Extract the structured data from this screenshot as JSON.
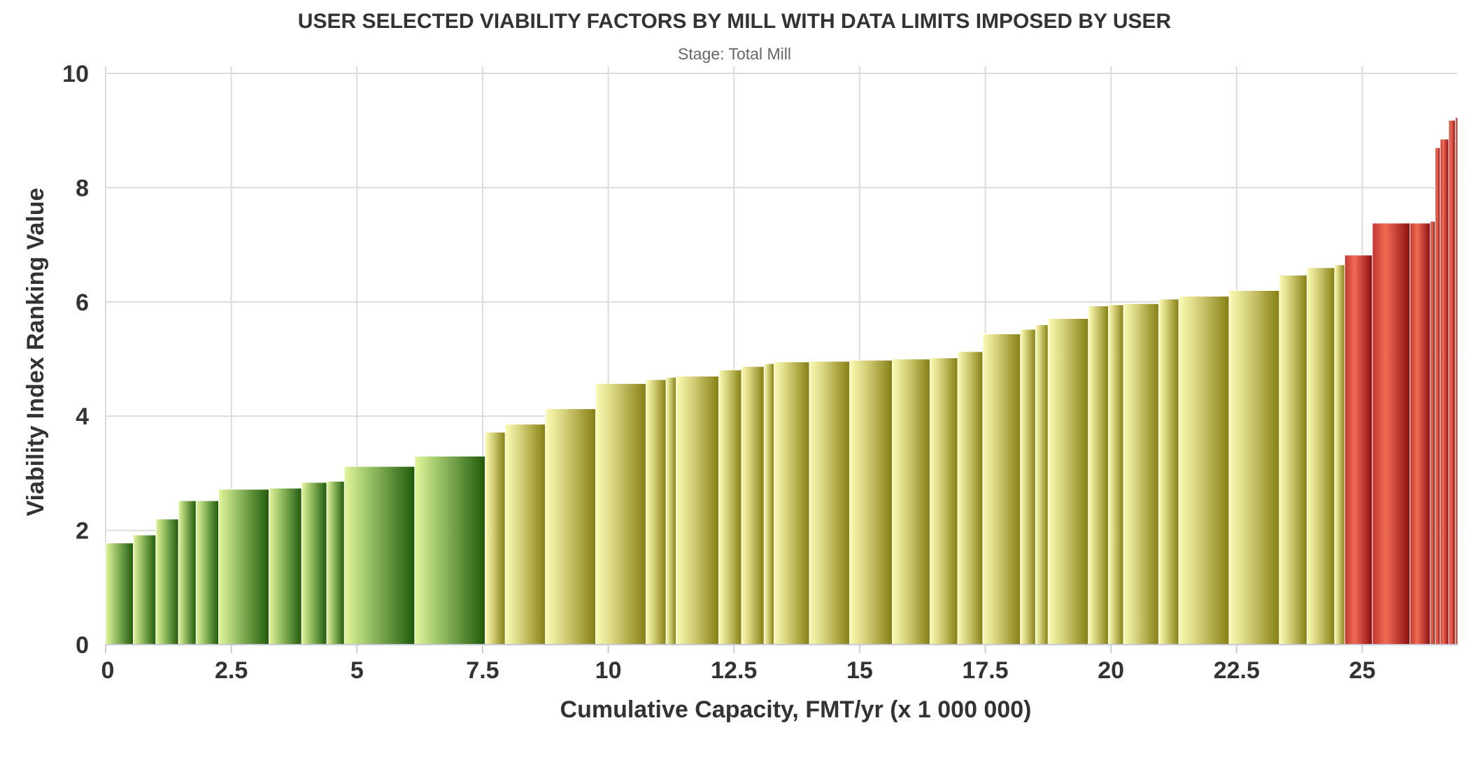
{
  "chart_data": {
    "type": "bar",
    "title": "USER SELECTED VIABILITY FACTORS BY MILL WITH DATA LIMITS IMPOSED BY USER",
    "subtitle": "Stage: Total Mill",
    "xlabel": "Cumulative Capacity, FMT/yr (x 1 000 000)",
    "ylabel": "Viability Index Ranking Value",
    "xlim": [
      0,
      26.9
    ],
    "ylim": [
      0,
      10
    ],
    "x_ticks": [
      "0",
      "2.5",
      "5",
      "7.5",
      "10",
      "12.5",
      "15",
      "17.5",
      "20",
      "22.5",
      "25"
    ],
    "x_tick_values": [
      0,
      2.5,
      5,
      7.5,
      10,
      12.5,
      15,
      17.5,
      20,
      22.5,
      25
    ],
    "y_ticks": [
      "0",
      "2",
      "4",
      "6",
      "8",
      "10"
    ],
    "y_tick_values": [
      0,
      2,
      4,
      6,
      8,
      10
    ],
    "grid": true,
    "legend": "none",
    "bar_style": "variable-width bars, each spanning a mill's capacity along the cumulative x axis",
    "colors": {
      "green": "#2e6b14",
      "olive": "#8f8a18",
      "red": "#c0392b"
    },
    "bars": [
      {
        "x0": 0.0,
        "x1": 0.55,
        "value": 1.78,
        "group": "green"
      },
      {
        "x0": 0.55,
        "x1": 1.0,
        "value": 1.92,
        "group": "green"
      },
      {
        "x0": 1.0,
        "x1": 1.45,
        "value": 2.2,
        "group": "green"
      },
      {
        "x0": 1.45,
        "x1": 1.8,
        "value": 2.52,
        "group": "green"
      },
      {
        "x0": 1.8,
        "x1": 2.25,
        "value": 2.52,
        "group": "green"
      },
      {
        "x0": 2.25,
        "x1": 3.25,
        "value": 2.72,
        "group": "green"
      },
      {
        "x0": 3.25,
        "x1": 3.9,
        "value": 2.74,
        "group": "green"
      },
      {
        "x0": 3.9,
        "x1": 4.4,
        "value": 2.84,
        "group": "green"
      },
      {
        "x0": 4.4,
        "x1": 4.75,
        "value": 2.86,
        "group": "green"
      },
      {
        "x0": 4.75,
        "x1": 6.15,
        "value": 3.12,
        "group": "green"
      },
      {
        "x0": 6.15,
        "x1": 7.55,
        "value": 3.3,
        "group": "green"
      },
      {
        "x0": 7.55,
        "x1": 7.95,
        "value": 3.72,
        "group": "olive"
      },
      {
        "x0": 7.95,
        "x1": 8.75,
        "value": 3.86,
        "group": "olive"
      },
      {
        "x0": 8.75,
        "x1": 9.75,
        "value": 4.13,
        "group": "olive"
      },
      {
        "x0": 9.75,
        "x1": 10.75,
        "value": 4.57,
        "group": "olive"
      },
      {
        "x0": 10.75,
        "x1": 11.15,
        "value": 4.64,
        "group": "olive"
      },
      {
        "x0": 11.15,
        "x1": 11.35,
        "value": 4.68,
        "group": "olive"
      },
      {
        "x0": 11.35,
        "x1": 12.2,
        "value": 4.7,
        "group": "olive"
      },
      {
        "x0": 12.2,
        "x1": 12.65,
        "value": 4.81,
        "group": "olive"
      },
      {
        "x0": 12.65,
        "x1": 13.1,
        "value": 4.87,
        "group": "olive"
      },
      {
        "x0": 13.1,
        "x1": 13.3,
        "value": 4.92,
        "group": "olive"
      },
      {
        "x0": 13.3,
        "x1": 14.0,
        "value": 4.95,
        "group": "olive"
      },
      {
        "x0": 14.0,
        "x1": 14.8,
        "value": 4.96,
        "group": "olive"
      },
      {
        "x0": 14.8,
        "x1": 15.65,
        "value": 4.98,
        "group": "olive"
      },
      {
        "x0": 15.65,
        "x1": 16.4,
        "value": 5.0,
        "group": "olive"
      },
      {
        "x0": 16.4,
        "x1": 16.95,
        "value": 5.02,
        "group": "olive"
      },
      {
        "x0": 16.95,
        "x1": 17.45,
        "value": 5.13,
        "group": "olive"
      },
      {
        "x0": 17.45,
        "x1": 18.2,
        "value": 5.44,
        "group": "olive"
      },
      {
        "x0": 18.2,
        "x1": 18.5,
        "value": 5.52,
        "group": "olive"
      },
      {
        "x0": 18.5,
        "x1": 18.75,
        "value": 5.6,
        "group": "olive"
      },
      {
        "x0": 18.75,
        "x1": 19.55,
        "value": 5.71,
        "group": "olive"
      },
      {
        "x0": 19.55,
        "x1": 19.95,
        "value": 5.93,
        "group": "olive"
      },
      {
        "x0": 19.95,
        "x1": 20.25,
        "value": 5.95,
        "group": "olive"
      },
      {
        "x0": 20.25,
        "x1": 20.95,
        "value": 5.97,
        "group": "olive"
      },
      {
        "x0": 20.95,
        "x1": 21.35,
        "value": 6.05,
        "group": "olive"
      },
      {
        "x0": 21.35,
        "x1": 22.35,
        "value": 6.1,
        "group": "olive"
      },
      {
        "x0": 22.35,
        "x1": 23.35,
        "value": 6.2,
        "group": "olive"
      },
      {
        "x0": 23.35,
        "x1": 23.9,
        "value": 6.47,
        "group": "olive"
      },
      {
        "x0": 23.9,
        "x1": 24.45,
        "value": 6.6,
        "group": "olive"
      },
      {
        "x0": 24.45,
        "x1": 24.65,
        "value": 6.65,
        "group": "olive"
      },
      {
        "x0": 24.65,
        "x1": 25.2,
        "value": 6.82,
        "group": "red"
      },
      {
        "x0": 25.2,
        "x1": 25.95,
        "value": 7.38,
        "group": "red"
      },
      {
        "x0": 25.95,
        "x1": 26.35,
        "value": 7.38,
        "group": "red"
      },
      {
        "x0": 26.35,
        "x1": 26.45,
        "value": 7.41,
        "group": "red"
      },
      {
        "x0": 26.45,
        "x1": 26.55,
        "value": 8.7,
        "group": "red"
      },
      {
        "x0": 26.55,
        "x1": 26.72,
        "value": 8.85,
        "group": "red"
      },
      {
        "x0": 26.72,
        "x1": 26.85,
        "value": 9.18,
        "group": "red"
      },
      {
        "x0": 26.85,
        "x1": 26.9,
        "value": 9.23,
        "group": "red"
      }
    ]
  }
}
